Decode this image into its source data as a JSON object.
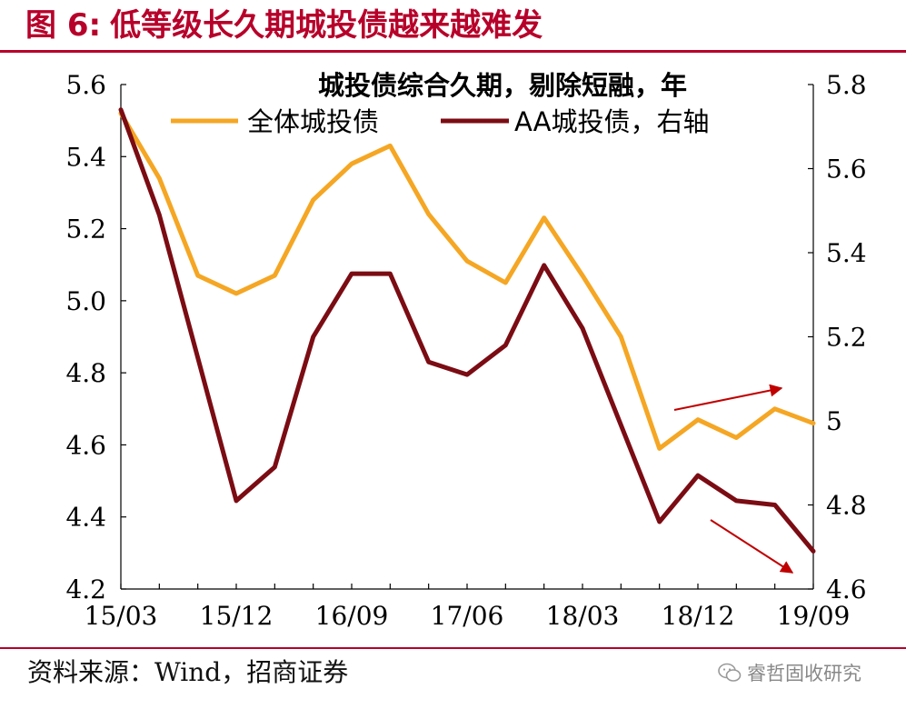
{
  "header": {
    "figure_number": "图 6:",
    "title": "低等级长久期城投债越来越难发"
  },
  "source": "资料来源：Wind，招商证券",
  "watermark": "睿哲固收研究",
  "chart_data": {
    "type": "line",
    "title": "城投债综合久期，剔除短融，年",
    "x": [
      "15/03",
      "15/06",
      "15/09",
      "15/12",
      "16/03",
      "16/06",
      "16/09",
      "16/12",
      "17/03",
      "17/06",
      "17/09",
      "17/12",
      "18/03",
      "18/06",
      "18/09",
      "18/12",
      "19/03",
      "19/06",
      "19/09"
    ],
    "x_tick_labels": [
      "15/03",
      "15/12",
      "16/09",
      "17/06",
      "18/03",
      "18/12",
      "19/09"
    ],
    "y_left": {
      "ticks": [
        "5.6",
        "5.4",
        "5.2",
        "5.0",
        "4.8",
        "4.6",
        "4.4",
        "4.2"
      ],
      "min": 4.2,
      "max": 5.6
    },
    "y_right": {
      "ticks": [
        "5.8",
        "5.6",
        "5.4",
        "5.2",
        "5",
        "4.8",
        "4.6"
      ],
      "min": 4.6,
      "max": 5.8
    },
    "series": [
      {
        "name": "全体城投债",
        "axis": "left",
        "color": "#f5a623",
        "values": [
          5.52,
          5.34,
          5.07,
          5.02,
          5.07,
          5.28,
          5.38,
          5.43,
          5.24,
          5.11,
          5.05,
          5.23,
          5.07,
          4.9,
          4.59,
          4.67,
          4.62,
          4.7,
          4.66
        ]
      },
      {
        "name": "AA城投债，右轴",
        "axis": "right",
        "color": "#7b0c13",
        "values": [
          5.74,
          5.49,
          5.15,
          4.81,
          4.89,
          5.2,
          5.35,
          5.35,
          5.14,
          5.11,
          5.18,
          5.37,
          5.22,
          4.99,
          4.76,
          4.87,
          4.81,
          4.8,
          4.69
        ]
      }
    ],
    "annotations": [
      {
        "type": "arrow",
        "direction": "up",
        "color": "#c00000"
      },
      {
        "type": "arrow",
        "direction": "down",
        "color": "#c00000"
      }
    ],
    "grid": false,
    "legend_position": "top"
  }
}
